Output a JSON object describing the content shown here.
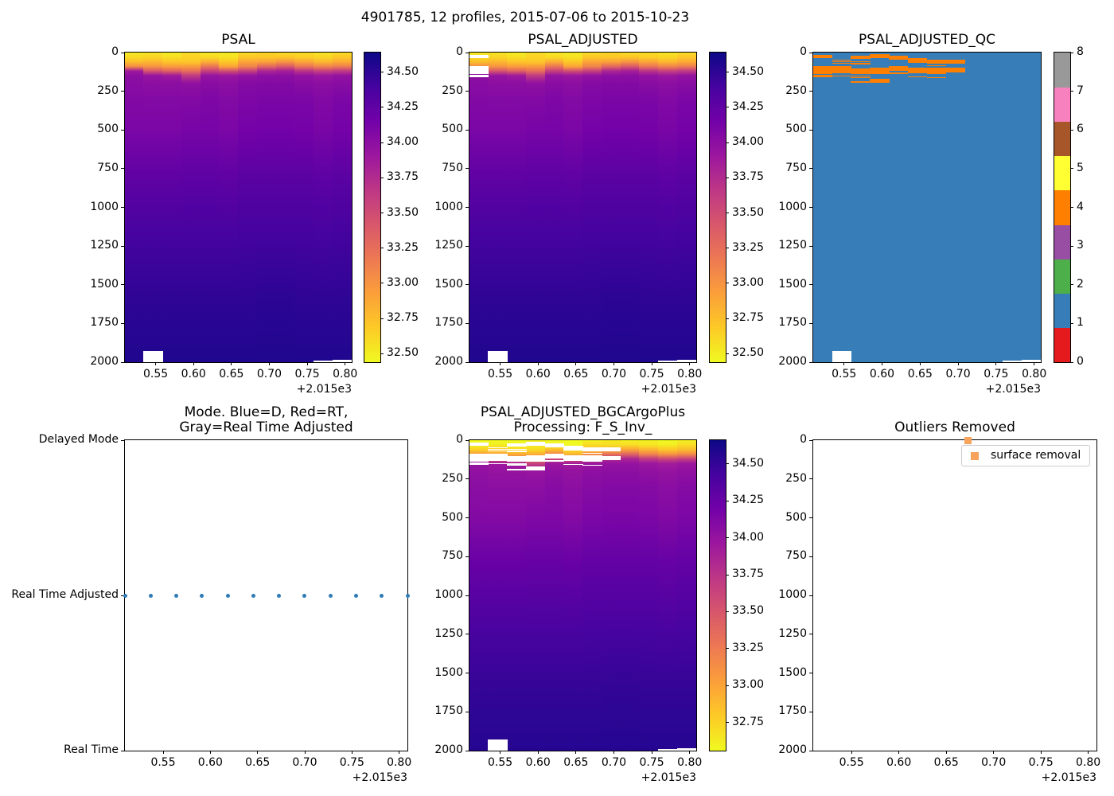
{
  "figure": {
    "title": "4901785, 12 profiles, 2015-07-06 to 2015-10-23",
    "background": "#ffffff"
  },
  "axes_common": {
    "x_tick_labels": [
      "0.55",
      "0.60",
      "0.65",
      "0.70",
      "0.75",
      "0.80"
    ],
    "x_tick_values": [
      0.55,
      0.6,
      0.65,
      0.7,
      0.75,
      0.8
    ],
    "x_offset_label": "+2.015e3",
    "x_range": [
      0.5095,
      0.8087
    ],
    "depth_tick_labels": [
      "0",
      "250",
      "500",
      "750",
      "1000",
      "1250",
      "1500",
      "1750",
      "2000"
    ],
    "depth_tick_values": [
      0,
      250,
      500,
      750,
      1000,
      1250,
      1500,
      1750,
      2000
    ],
    "depth_range": [
      0,
      2000
    ]
  },
  "profiles": {
    "count": 12,
    "x_positions": [
      0.5095,
      0.5367,
      0.5639,
      0.5911,
      0.6183,
      0.6455,
      0.6727,
      0.6999,
      0.7271,
      0.7543,
      0.7815,
      0.8087
    ],
    "depths": [
      0,
      30,
      60,
      90,
      120,
      150,
      200,
      300,
      500,
      800,
      1200,
      1600,
      2000
    ],
    "psal": [
      [
        32.52,
        32.6,
        32.75,
        33.05,
        33.9,
        34.0,
        34.02,
        34.06,
        34.1,
        34.25,
        34.4,
        34.5,
        34.56
      ],
      [
        32.56,
        32.62,
        32.8,
        33.0,
        33.45,
        33.95,
        34.0,
        34.05,
        34.1,
        34.25,
        34.4,
        34.5,
        34.56
      ],
      [
        32.5,
        32.58,
        32.72,
        32.95,
        33.35,
        33.9,
        34.0,
        34.05,
        34.1,
        34.25,
        34.4,
        34.5,
        34.56
      ],
      [
        32.6,
        32.64,
        32.7,
        32.95,
        33.25,
        33.65,
        33.98,
        34.05,
        34.12,
        34.26,
        34.4,
        34.5,
        34.56
      ],
      [
        32.54,
        32.6,
        32.85,
        33.2,
        33.6,
        33.95,
        34.02,
        34.08,
        34.12,
        34.26,
        34.4,
        34.5,
        34.56
      ],
      [
        32.52,
        32.56,
        32.7,
        32.9,
        33.5,
        33.92,
        34.0,
        34.05,
        34.1,
        34.25,
        34.4,
        34.5,
        34.56
      ],
      [
        32.6,
        32.7,
        32.9,
        33.1,
        33.6,
        33.96,
        34.04,
        34.08,
        34.14,
        34.28,
        34.41,
        34.5,
        34.56
      ],
      [
        32.64,
        32.7,
        32.92,
        33.3,
        33.8,
        34.0,
        34.05,
        34.1,
        34.15,
        34.28,
        34.41,
        34.51,
        34.56
      ],
      [
        32.6,
        32.7,
        33.0,
        33.4,
        33.85,
        34.0,
        34.05,
        34.1,
        34.15,
        34.28,
        34.41,
        34.51,
        34.56
      ],
      [
        32.6,
        32.66,
        32.9,
        33.2,
        33.7,
        33.96,
        34.02,
        34.09,
        34.14,
        34.28,
        34.41,
        34.5,
        34.56
      ],
      [
        32.56,
        32.62,
        32.8,
        33.1,
        33.6,
        33.92,
        34.0,
        34.06,
        34.11,
        34.26,
        34.4,
        34.5,
        34.56
      ],
      [
        32.6,
        32.7,
        32.86,
        33.15,
        33.65,
        33.96,
        34.02,
        34.09,
        34.14,
        34.28,
        34.41,
        34.5,
        34.56
      ]
    ]
  },
  "colormap": {
    "name": "plasma_r",
    "plasma_stops": [
      "#0d0887",
      "#46039f",
      "#7201a8",
      "#9c179e",
      "#bd3786",
      "#d8576b",
      "#ed7953",
      "#fb9f3a",
      "#fdca26",
      "#f0f921"
    ]
  },
  "chart_data": [
    {
      "id": "psal",
      "type": "heatmap",
      "title_lines": [
        "PSAL"
      ],
      "colorbar": {
        "vmin": 32.44,
        "vmax": 34.64,
        "tick_values": [
          34.5,
          34.25,
          34.0,
          33.75,
          33.5,
          33.25,
          33.0,
          32.75,
          32.5
        ],
        "tick_labels": [
          "34.50",
          "34.25",
          "34.00",
          "33.75",
          "33.50",
          "33.25",
          "33.00",
          "32.75",
          "32.50"
        ]
      },
      "gaps": {
        "1": [
          [
            1930,
            2000
          ]
        ],
        "10": [
          [
            1990,
            2000
          ]
        ],
        "11": [
          [
            1987,
            2000
          ]
        ]
      }
    },
    {
      "id": "psal-adjusted",
      "type": "heatmap",
      "title_lines": [
        "PSAL_ADJUSTED"
      ],
      "colorbar": {
        "vmin": 32.44,
        "vmax": 34.64,
        "tick_values": [
          34.5,
          34.25,
          34.0,
          33.75,
          33.5,
          33.25,
          33.0,
          32.75,
          32.5
        ],
        "tick_labels": [
          "34.50",
          "34.25",
          "34.00",
          "33.75",
          "33.50",
          "33.25",
          "33.00",
          "32.75",
          "32.50"
        ]
      },
      "gaps": {
        "0": [
          [
            17,
            37
          ],
          [
            89,
            140
          ],
          [
            145,
            161
          ]
        ],
        "1": [
          [
            1930,
            2000
          ]
        ],
        "10": [
          [
            1990,
            2000
          ]
        ],
        "11": [
          [
            1987,
            2000
          ]
        ]
      }
    },
    {
      "id": "psal-adjusted-qc",
      "type": "qc-heatmap",
      "title_lines": [
        "PSAL_ADJUSTED_QC"
      ],
      "background_value": 1,
      "flagged_value": 4,
      "palette": [
        "#e41a1c",
        "#377eb8",
        "#4daf4a",
        "#984ea3",
        "#ff7f00",
        "#ffff33",
        "#a65628",
        "#f781bf",
        "#999999"
      ],
      "colorbar_tick_labels": [
        "0",
        "1",
        "2",
        "3",
        "4",
        "5",
        "6",
        "7",
        "8"
      ],
      "marks": {
        "0": [
          [
            17,
            37
          ],
          [
            89,
            140
          ],
          [
            145,
            161
          ]
        ],
        "1": [
          [
            46,
            50
          ],
          [
            56,
            60
          ],
          [
            66,
            70
          ],
          [
            89,
            135
          ],
          [
            148,
            152
          ]
        ],
        "2": [
          [
            21,
            41
          ],
          [
            57,
            61
          ],
          [
            68,
            72
          ],
          [
            103,
            137
          ],
          [
            150,
            154
          ],
          [
            160,
            164
          ],
          [
            185,
            197
          ]
        ],
        "3": [
          [
            12,
            37
          ],
          [
            98,
            140
          ],
          [
            171,
            195
          ]
        ],
        "4": [
          [
            21,
            46
          ],
          [
            86,
            120
          ],
          [
            130,
            134
          ]
        ],
        "5": [
          [
            38,
            68
          ],
          [
            98,
            132
          ],
          [
            152,
            156
          ]
        ],
        "6": [
          [
            46,
            72
          ],
          [
            80,
            84
          ],
          [
            98,
            137
          ],
          [
            159,
            163
          ]
        ],
        "7": [
          [
            48,
            70
          ],
          [
            100,
            130
          ]
        ]
      },
      "gaps": {
        "1": [
          [
            1930,
            2000
          ]
        ],
        "10": [
          [
            1990,
            2000
          ]
        ],
        "11": [
          [
            1987,
            2000
          ]
        ]
      }
    },
    {
      "id": "mode",
      "type": "mode-scatter",
      "title_lines": [
        "Mode. Blue=D, Red=RT,",
        "Gray=Real Time Adjusted"
      ],
      "y_category_labels": [
        "Delayed Mode",
        "Real Time Adjusted",
        "Real Time"
      ],
      "marker_color": "#2e7cb8",
      "points_category": "Real Time Adjusted",
      "points_x": [
        0.5095,
        0.5367,
        0.5639,
        0.5911,
        0.6183,
        0.6455,
        0.6727,
        0.6999,
        0.7271,
        0.7543,
        0.7815,
        0.8087
      ]
    },
    {
      "id": "psal-adjusted-bgcargoplus",
      "type": "heatmap",
      "title_lines": [
        "PSAL_ADJUSTED_BGCArgoPlus",
        "Processing: F_S_Inv_"
      ],
      "colorbar": {
        "vmin": 32.56,
        "vmax": 34.66,
        "tick_values": [
          34.5,
          34.25,
          34.0,
          33.75,
          33.5,
          33.25,
          33.0,
          32.75
        ],
        "tick_labels": [
          "34.50",
          "34.25",
          "34.00",
          "33.75",
          "33.50",
          "33.25",
          "33.00",
          "32.75"
        ]
      },
      "gaps": {
        "0": [
          [
            17,
            37
          ],
          [
            89,
            140
          ],
          [
            145,
            161
          ]
        ],
        "1": [
          [
            46,
            50
          ],
          [
            56,
            60
          ],
          [
            66,
            70
          ],
          [
            89,
            135
          ],
          [
            148,
            152
          ],
          [
            1930,
            2000
          ]
        ],
        "2": [
          [
            21,
            41
          ],
          [
            57,
            61
          ],
          [
            68,
            72
          ],
          [
            103,
            137
          ],
          [
            150,
            154
          ],
          [
            160,
            164
          ],
          [
            185,
            197
          ]
        ],
        "3": [
          [
            12,
            37
          ],
          [
            98,
            140
          ],
          [
            171,
            195
          ]
        ],
        "4": [
          [
            21,
            46
          ],
          [
            86,
            120
          ],
          [
            130,
            134
          ]
        ],
        "5": [
          [
            38,
            68
          ],
          [
            98,
            132
          ],
          [
            152,
            156
          ]
        ],
        "6": [
          [
            46,
            72
          ],
          [
            80,
            84
          ],
          [
            98,
            137
          ],
          [
            159,
            163
          ]
        ],
        "7": [
          [
            48,
            70
          ],
          [
            100,
            130
          ]
        ],
        "10": [
          [
            1990,
            2000
          ]
        ],
        "11": [
          [
            1987,
            2000
          ]
        ]
      }
    },
    {
      "id": "outliers-removed",
      "type": "outliers-scatter",
      "title_lines": [
        "Outliers Removed"
      ],
      "legend": {
        "label": "surface removal",
        "marker_color": "#f7a35c"
      },
      "points": [
        {
          "x": 0.6727,
          "depth": 5
        }
      ]
    }
  ]
}
